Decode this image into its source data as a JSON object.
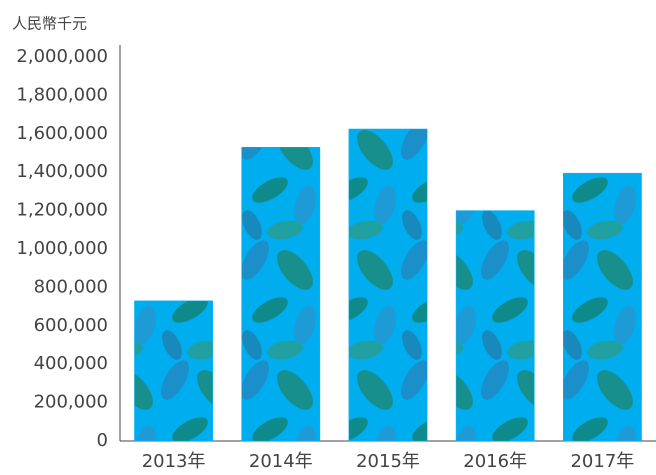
{
  "chart_data": {
    "type": "bar",
    "title": "人民幣千元",
    "categories": [
      "2013年",
      "2014年",
      "2015年",
      "2016年",
      "2017年"
    ],
    "values": [
      730000,
      1530000,
      1625000,
      1200000,
      1395000
    ],
    "color": "#00aeef",
    "ylim": [
      0,
      2000000
    ],
    "yticks": [
      0,
      {
        "value": 200000,
        "label": "200,000"
      },
      {
        "value": 400000,
        "label": "400,000"
      },
      {
        "value": 600000,
        "label": "600,000"
      },
      {
        "value": 800000,
        "label": "800,000"
      },
      {
        "value": 1000000,
        "label": "1,000,000"
      },
      {
        "value": 1200000,
        "label": "1,200,000"
      },
      {
        "value": 1400000,
        "label": "1,400,000"
      },
      {
        "value": 1600000,
        "label": "1,600,000"
      },
      {
        "value": 1800000,
        "label": "1,800,000"
      },
      {
        "value": 2000000,
        "label": "2,000,000"
      }
    ],
    "grid": false
  }
}
